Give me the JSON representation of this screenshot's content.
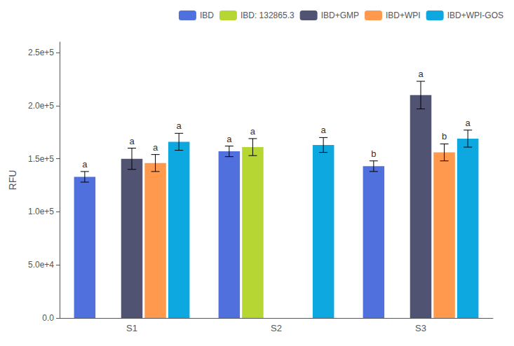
{
  "chart_data": {
    "type": "bar",
    "categories": [
      "S1",
      "S2",
      "S3"
    ],
    "series": [
      {
        "name": "IBD",
        "values": [
          133000,
          157000,
          143000
        ],
        "errors": [
          5000,
          5000,
          5000
        ],
        "letters": [
          "a",
          "a",
          "b"
        ]
      },
      {
        "name": "IBD: 132865.3",
        "values": [
          null,
          161000,
          null
        ],
        "errors": [
          null,
          8000,
          null
        ],
        "letters": [
          null,
          "a",
          null
        ]
      },
      {
        "name": "IBD+GMP",
        "values": [
          150000,
          null,
          210000
        ],
        "errors": [
          10000,
          null,
          13000
        ],
        "letters": [
          "a",
          null,
          "a"
        ]
      },
      {
        "name": "IBD+WPI",
        "values": [
          146000,
          null,
          156000
        ],
        "errors": [
          8000,
          null,
          8000
        ],
        "letters": [
          "a",
          null,
          "b"
        ]
      },
      {
        "name": "IBD+WPI-GOS",
        "values": [
          166000,
          163000,
          169000
        ],
        "errors": [
          8000,
          7000,
          8000
        ],
        "letters": [
          "a",
          "a",
          "a"
        ]
      }
    ],
    "ylabel": "RFU",
    "ylim": [
      0,
      260000
    ],
    "yticks": [
      {
        "value": 0,
        "label": "0.0"
      },
      {
        "value": 50000,
        "label": "5.0e+4"
      },
      {
        "value": 100000,
        "label": "1.0e+5"
      },
      {
        "value": 150000,
        "label": "1.5e+5"
      },
      {
        "value": 200000,
        "label": "2.0e+5"
      },
      {
        "value": 250000,
        "label": "2.5e+5"
      }
    ],
    "grid": false,
    "legend": "upper right"
  }
}
